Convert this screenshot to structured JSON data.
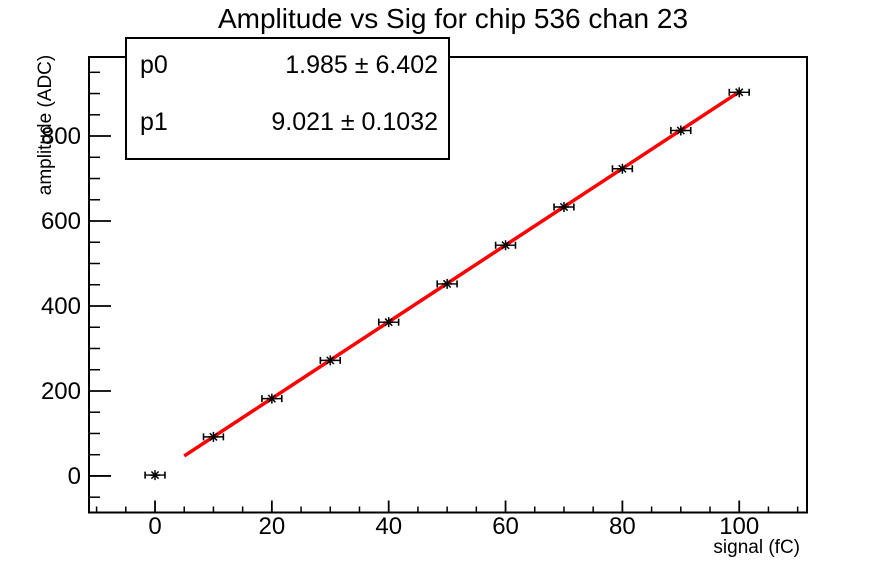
{
  "title": "Amplitude vs Sig for chip 536 chan 23",
  "stats_box": {
    "rows": [
      {
        "param": "p0",
        "display": "1.985 ± 6.402"
      },
      {
        "param": "p1",
        "display": "9.021 ± 0.1032"
      }
    ]
  },
  "chart_data": {
    "type": "scatter",
    "title": "Amplitude vs Sig for chip 536 chan 23",
    "xlabel": "signal (fC)",
    "ylabel": "amplitude (ADC)",
    "x": [
      0,
      10,
      20,
      30,
      40,
      50,
      60,
      70,
      80,
      90,
      100
    ],
    "y": [
      2,
      92,
      182,
      272,
      362,
      452,
      543,
      633,
      723,
      813,
      903
    ],
    "x_error": 1.7,
    "xlim": [
      -11.3,
      111.6
    ],
    "ylim": [
      -86,
      986
    ],
    "x_major_ticks": [
      0,
      20,
      40,
      60,
      80,
      100
    ],
    "x_minor_step": 5,
    "y_major_ticks": [
      0,
      200,
      400,
      600,
      800
    ],
    "y_minor_step": 50,
    "grid": false,
    "legend": "none",
    "marker": "star",
    "marker_color": "#000000",
    "frame_color": "#000000",
    "background_color": "#ffffff",
    "fit": {
      "label": "linear",
      "p0": 1.985,
      "p0_err": 6.402,
      "p1": 9.021,
      "p1_err": 0.1032,
      "x_range": [
        5,
        100
      ],
      "color": "#ff0000"
    }
  }
}
